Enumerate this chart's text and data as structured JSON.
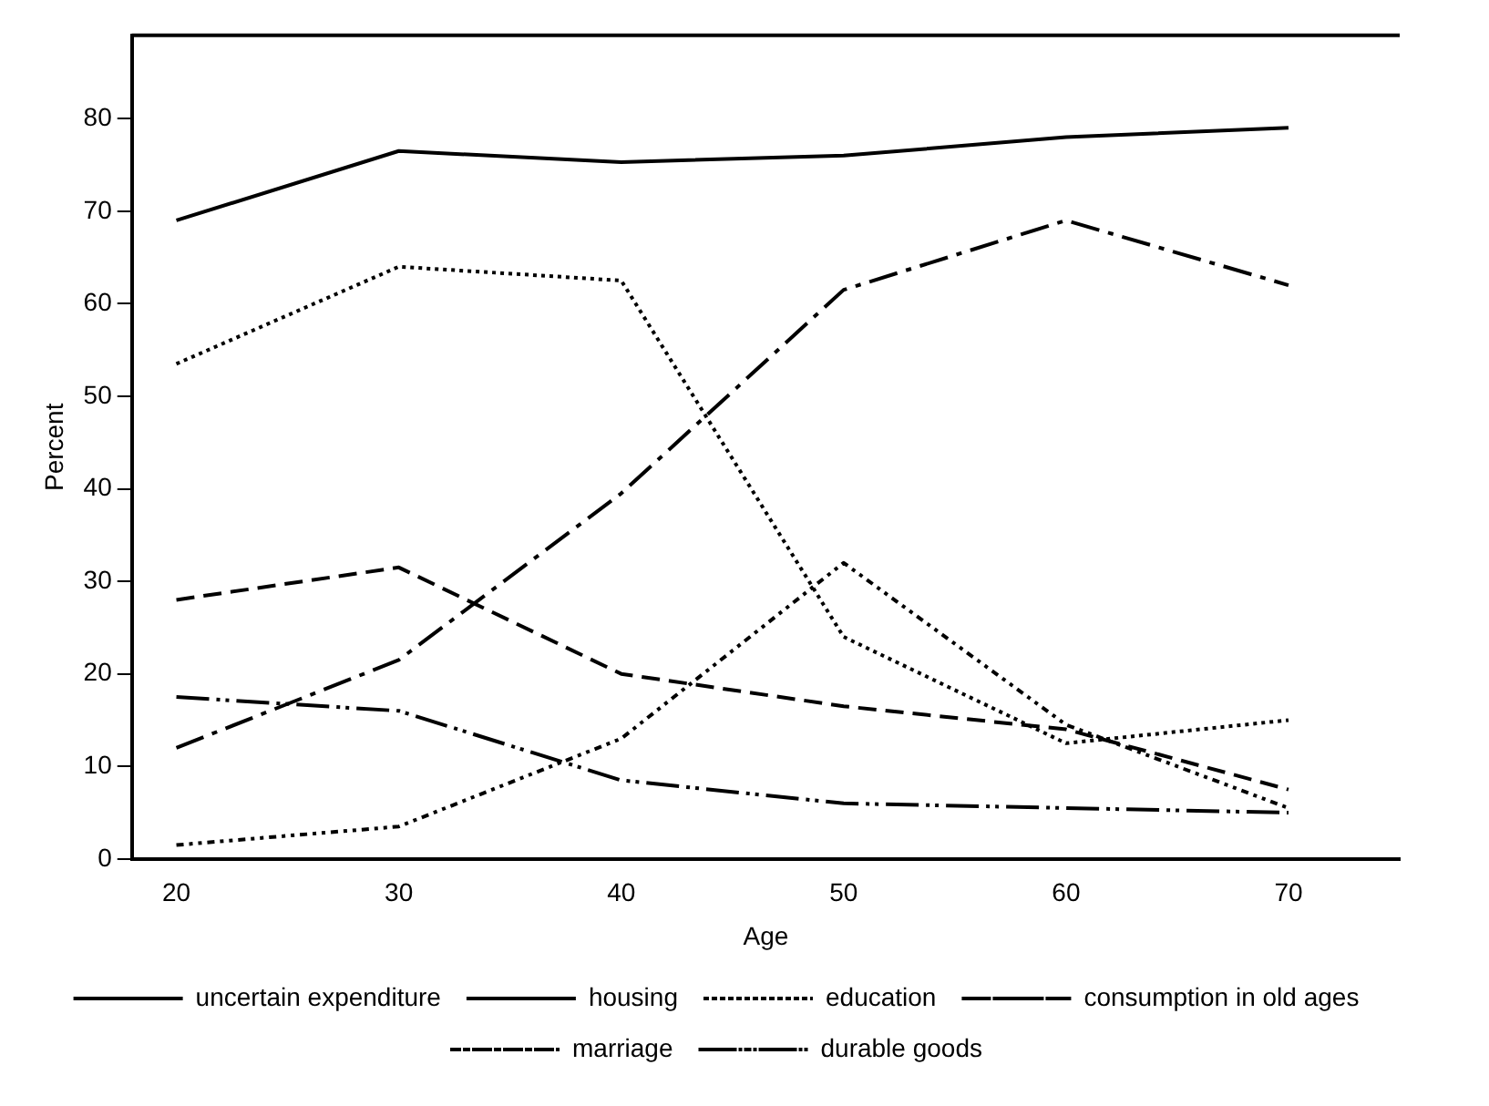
{
  "chart_data": {
    "type": "line",
    "xlabel": "Age",
    "ylabel": "Percent",
    "x": [
      20,
      30,
      40,
      50,
      60,
      70
    ],
    "xlim": [
      18,
      75
    ],
    "xticks": [
      20,
      30,
      40,
      50,
      60,
      70
    ],
    "ylim": [
      0,
      89
    ],
    "yticks": [
      0,
      10,
      20,
      30,
      40,
      50,
      60,
      70,
      80
    ],
    "grid": false,
    "legend": "bottom",
    "marker": "none",
    "series": [
      {
        "name": "uncertain expenditure",
        "color": "#000000",
        "line_style": "solid",
        "values": [
          69,
          76.5,
          75.3,
          76,
          78,
          79
        ]
      },
      {
        "name": "housing",
        "color": "#000000",
        "line_style": "dashed",
        "values": [
          28,
          31.5,
          20,
          16.5,
          14,
          7.5
        ]
      },
      {
        "name": "education",
        "color": "#000000",
        "line_style": "dotted",
        "values": [
          53.5,
          64,
          62.5,
          24,
          12.5,
          15
        ]
      },
      {
        "name": "consumption in old ages",
        "color": "#000000",
        "line_style": "dashdot",
        "values": [
          12,
          21.5,
          39.5,
          61.5,
          69,
          62
        ]
      },
      {
        "name": "marriage",
        "color": "#000000",
        "line_style": "dashdotdot",
        "values": [
          1.5,
          3.5,
          13,
          32,
          14.5,
          5.5
        ]
      },
      {
        "name": "durable goods",
        "color": "#000000",
        "line_style": "longdashdotdot",
        "values": [
          17.5,
          16,
          8.5,
          6,
          5.5,
          5
        ]
      }
    ]
  }
}
